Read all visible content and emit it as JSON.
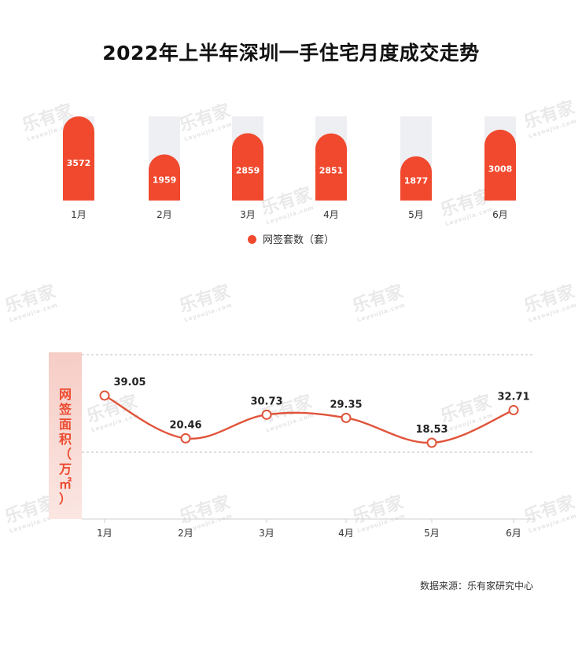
{
  "title": "2022年上半年深圳一手住宅月度成交走势",
  "watermark": {
    "text": "乐有家",
    "sub": "Leyoujia.com"
  },
  "chart_data": [
    {
      "type": "bar",
      "categories": [
        "1月",
        "2月",
        "3月",
        "4月",
        "5月",
        "6月"
      ],
      "series": [
        {
          "name": "网签套数（套）",
          "values": [
            3572,
            1959,
            2859,
            2851,
            1877,
            3008
          ]
        }
      ],
      "legend": "bottom",
      "colors": {
        "bar": "#f0492d",
        "track": "#eeeff3"
      }
    },
    {
      "type": "line",
      "categories": [
        "1月",
        "2月",
        "3月",
        "4月",
        "5月",
        "6月"
      ],
      "series": [
        {
          "values": [
            39.05,
            20.46,
            30.73,
            29.35,
            18.53,
            32.71
          ]
        }
      ],
      "ylabel": "网签面积（万㎡）",
      "grid": true,
      "colors": {
        "line": "#e0543a"
      }
    }
  ],
  "source": "数据来源：乐有家研究中心"
}
